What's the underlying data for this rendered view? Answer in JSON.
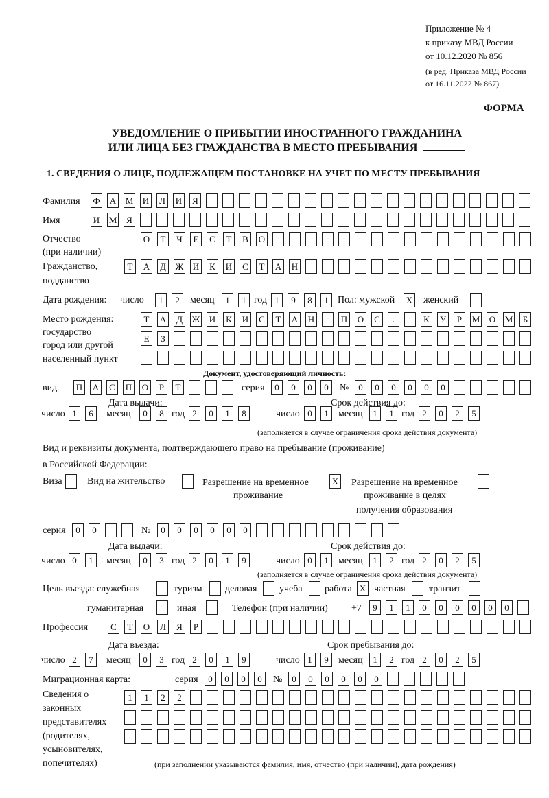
{
  "header": {
    "appendix": "Приложение № 4",
    "order": "к приказу МВД России",
    "order_date": "от 10.12.2020 № 856",
    "revision_1": "(в ред. Приказа МВД России",
    "revision_2": "от 16.11.2022 № 867)",
    "form_label": "ФОРМА",
    "title_1": "УВЕДОМЛЕНИЕ О ПРИБЫТИИ ИНОСТРАННОГО ГРАЖДАНИНА",
    "title_2": "ИЛИ ЛИЦА БЕЗ ГРАЖДАНСТВА В МЕСТО ПРЕБЫВАНИЯ",
    "section_1": "1. СВЕДЕНИЯ О ЛИЦЕ, ПОДЛЕЖАЩЕМ ПОСТАНОВКЕ НА УЧЕТ ПО МЕСТУ ПРЕБЫВАНИЯ"
  },
  "labels": {
    "surname": "Фамилия",
    "name": "Имя",
    "patronymic_1": "Отчество",
    "patronymic_2": "(при наличии)",
    "citizenship_1": "Гражданство,",
    "citizenship_2": "подданство",
    "birth_date": "Дата рождения:",
    "day": "число",
    "month": "месяц",
    "year": "год",
    "sex": "Пол: мужской",
    "female": "женский",
    "birth_place_1": "Место рождения:",
    "birth_place_2": "государство",
    "birth_place_3": "город или другой",
    "birth_place_4": "населенный пункт",
    "id_doc": "Документ, удостоверяющий личность:",
    "kind": "вид",
    "series": "серия",
    "number": "№",
    "issue_date": "Дата выдачи:",
    "valid_until": "Срок действия до:",
    "validity_note": "(заполняется в случае ограничения срока действия документа)",
    "right_doc_1": "Вид и реквизиты документа, подтверждающего право на пребывание (проживание)",
    "right_doc_2": "в Российской Федерации:",
    "visa": "Виза",
    "residence_permit": "Вид на жительство",
    "temp_residence_1": "Разрешение на временное",
    "temp_residence_2": "проживание",
    "temp_edu_1": "Разрешение на временное",
    "temp_edu_2": "проживание в целях",
    "temp_edu_3": "получения образования",
    "purpose": "Цель въезда: служебная",
    "tourism": "туризм",
    "business": "деловая",
    "study": "учеба",
    "work": "работа",
    "private": "частная",
    "transit": "транзит",
    "humanitarian": "гуманитарная",
    "other": "иная",
    "phone": "Телефон (при наличии)",
    "phone_prefix": "+7",
    "profession": "Профессия",
    "entry_date": "Дата въезда:",
    "stay_until": "Срок пребывания до:",
    "migration_card": "Миграционная карта:",
    "reps_1": "Сведения о",
    "reps_2": "законных",
    "reps_3": "представителях",
    "reps_4": "(родителях,",
    "reps_5": "усыновителях,",
    "reps_6": "попечителях)",
    "reps_note": "(при заполнении указываются фамилия, имя, отчество (при наличии), дата рождения)"
  },
  "person": {
    "surname": "ФАМИЛИЯ",
    "name": "ИМЯ",
    "patronymic": "ОТЧЕСТВО",
    "citizenship": "ТАДЖИКИСТАН",
    "birth": {
      "day": "12",
      "month": "11",
      "year": "1981"
    },
    "sex_male": "X",
    "sex_female": "",
    "birth_place": [
      "ТАДЖИКИСТАН ПОС. КУРМОМБ",
      "ЕЗ",
      ""
    ]
  },
  "id_document": {
    "kind": "ПАСПОРТ",
    "series": "0000",
    "number": "000000",
    "issue": {
      "day": "16",
      "month": "08",
      "year": "2018"
    },
    "valid": {
      "day": "01",
      "month": "11",
      "year": "2025"
    }
  },
  "right_document": {
    "visa": "",
    "residence_permit": "",
    "temp_residence": "X",
    "temp_edu": "",
    "series": "00",
    "number": "000000",
    "issue": {
      "day": "01",
      "month": "03",
      "year": "2019"
    },
    "valid": {
      "day": "01",
      "month": "12",
      "year": "2025"
    }
  },
  "purpose": {
    "official": "",
    "tourism": "",
    "business": "",
    "study": "",
    "work": "X",
    "private": "",
    "transit": "",
    "humanitarian": "",
    "other": ""
  },
  "phone": "911000000",
  "profession": "СТОЛЯР",
  "entry": {
    "day": "27",
    "month": "03",
    "year": "2019"
  },
  "stay": {
    "day": "19",
    "month": "12",
    "year": "2025"
  },
  "migration_card": {
    "series": "0000",
    "number": "000000"
  },
  "representatives": [
    "1122",
    "",
    ""
  ]
}
